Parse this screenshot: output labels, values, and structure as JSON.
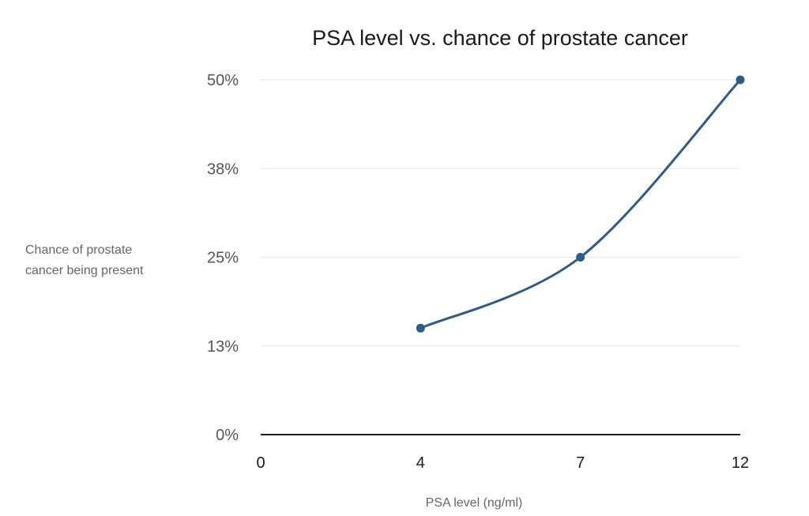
{
  "chart_data": {
    "type": "line",
    "title": "PSA level vs. chance of prostate cancer",
    "xlabel": "PSA level (ng/ml)",
    "ylabel_lines": [
      "Chance of prostate",
      "cancer being present"
    ],
    "x_ticks": [
      "0",
      "4",
      "7",
      "12"
    ],
    "y_ticks": [
      "0%",
      "13%",
      "25%",
      "38%",
      "50%"
    ],
    "ylim": [
      0,
      50
    ],
    "grid": true,
    "series": [
      {
        "x": [
          "4",
          "7",
          "12"
        ],
        "values": [
          15,
          25,
          50
        ],
        "color": "#2e5c87"
      }
    ]
  }
}
